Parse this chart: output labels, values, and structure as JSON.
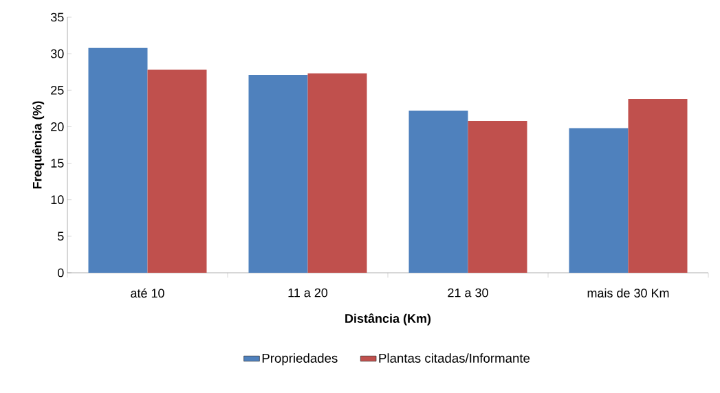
{
  "chart_data": {
    "type": "bar",
    "xlabel": "Distância (Km)",
    "ylabel": "Frequência (%)",
    "categories": [
      "até 10",
      "11 a 20",
      "21 a 30",
      "mais de 30 Km"
    ],
    "series": [
      {
        "name": "Propriedades",
        "color": "#4f81bd",
        "values": [
          30.8,
          27.1,
          22.2,
          19.8
        ]
      },
      {
        "name": "Plantas citadas/Informante",
        "color": "#c0504d",
        "values": [
          27.8,
          27.3,
          20.8,
          23.8
        ]
      }
    ],
    "ylim": [
      0,
      35
    ],
    "yticks": [
      0,
      5,
      10,
      15,
      20,
      25,
      30,
      35
    ],
    "grid": false,
    "legend": "bottom"
  }
}
